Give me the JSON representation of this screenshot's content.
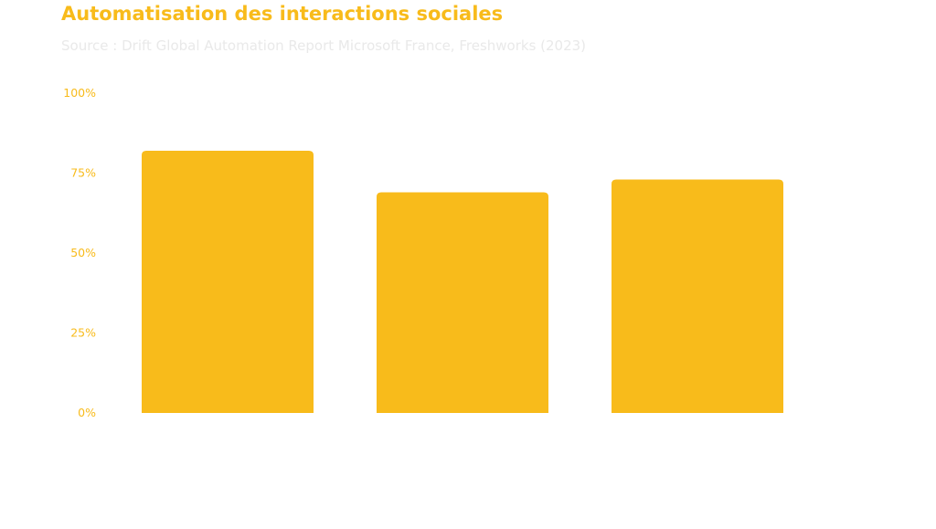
{
  "colors": {
    "accent": "#F8BB1B",
    "subtitle": "#e9e9e9"
  },
  "chart_data": {
    "type": "bar",
    "title": "Automatisation des interactions sociales",
    "subtitle": "Source : Drift Global Automation Report Microsoft France, Freshworks (2023)",
    "xlabel": "",
    "ylabel": "",
    "ylim": [
      0,
      100
    ],
    "yticks": [
      0,
      25,
      50,
      75,
      100
    ],
    "ytick_labels": [
      "0%",
      "25%",
      "50%",
      "75%",
      "100%"
    ],
    "categories": [
      "",
      "",
      ""
    ],
    "values": [
      82,
      69,
      73
    ],
    "grid": false,
    "legend": "none"
  }
}
